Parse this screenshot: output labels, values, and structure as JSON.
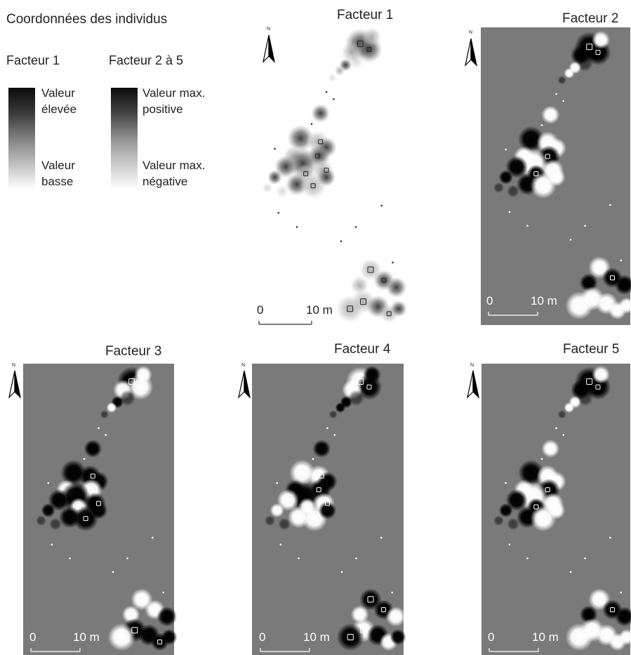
{
  "heading": "Coordonnées des individus",
  "legend": {
    "facteur1_label": "Facteur 1",
    "facteur1_high_line1": "Valeur",
    "facteur1_high_line2": "élevée",
    "facteur1_low_line1": "Valeur",
    "facteur1_low_line2": "basse",
    "facteur25_label": "Facteur 2 à 5",
    "facteur25_high_line1": "Valeur max.",
    "facteur25_high_line2": "positive",
    "facteur25_low_line1": "Valeur max.",
    "facteur25_low_line2": "négative"
  },
  "panels": [
    {
      "title": "Facteur 1"
    },
    {
      "title": "Facteur 2"
    },
    {
      "title": "Facteur 3"
    },
    {
      "title": "Facteur 4"
    },
    {
      "title": "Facteur 5"
    }
  ],
  "scale": {
    "start": "0",
    "end": "10 m"
  },
  "north": "N",
  "colors": {
    "panel_bg": "#7a7a7a",
    "high": "#000000",
    "low": "#ffffff"
  }
}
